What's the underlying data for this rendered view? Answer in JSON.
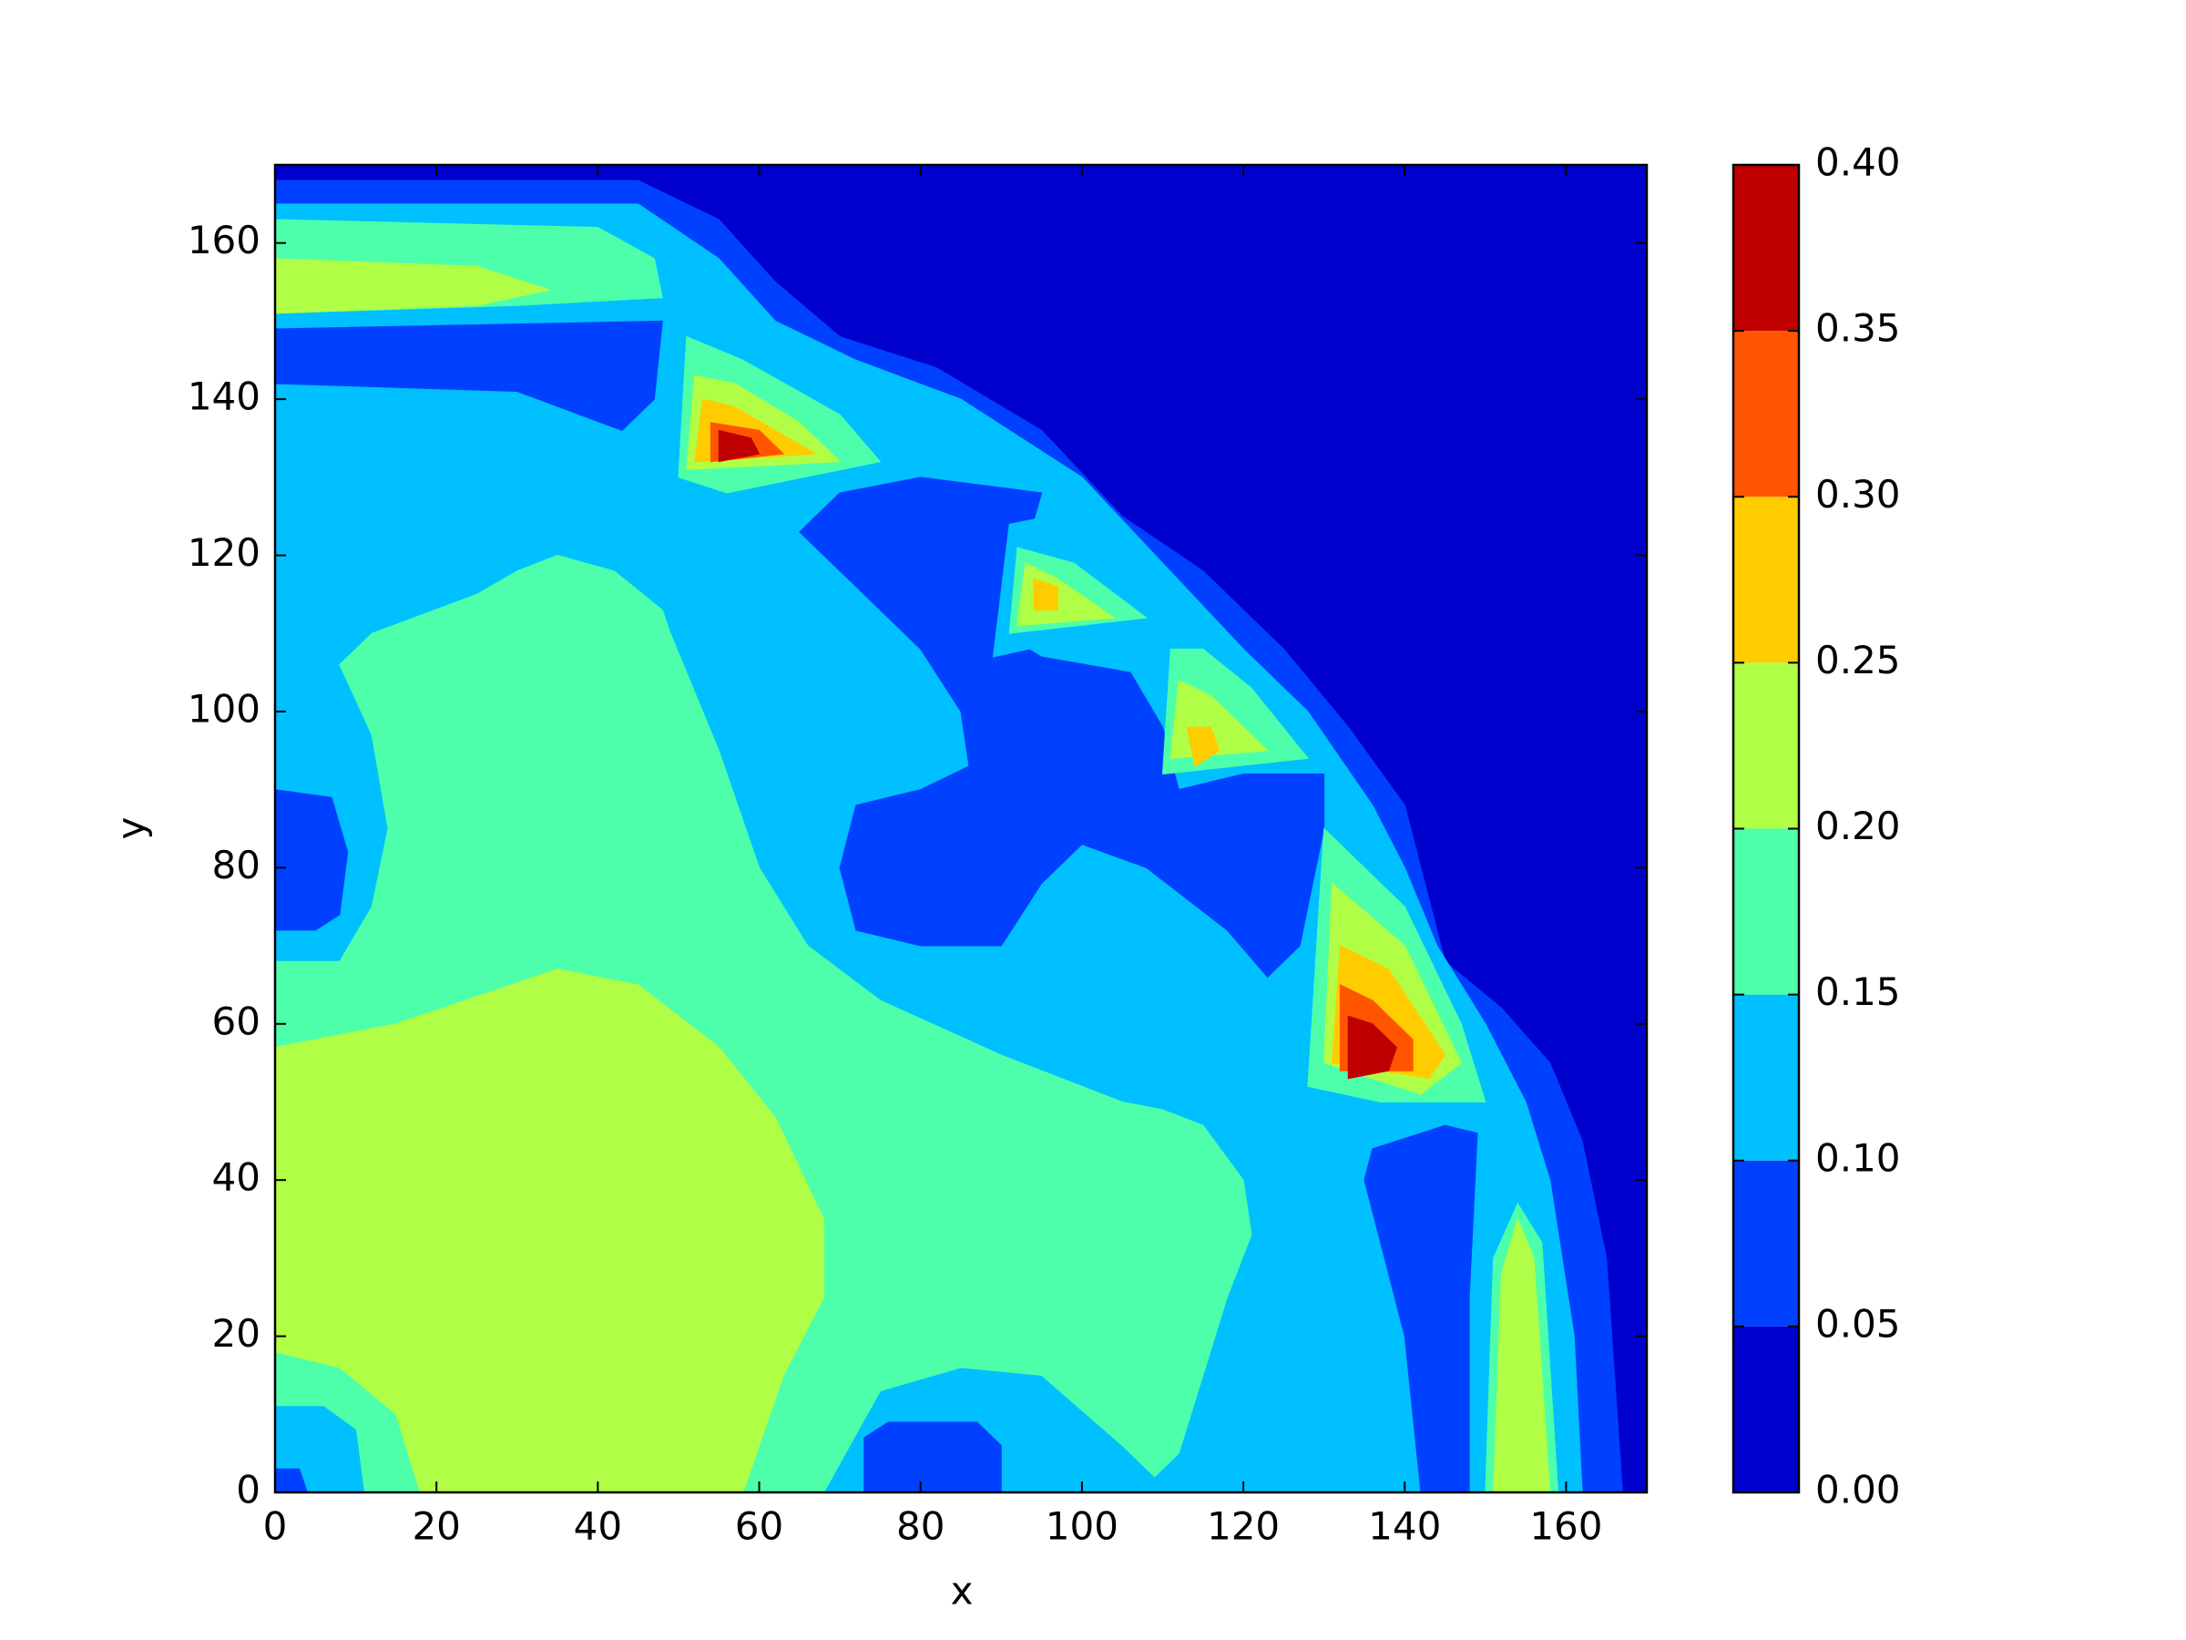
{
  "chart_data": {
    "type": "contourf",
    "x_label": "x",
    "y_label": "y",
    "xlim": [
      0,
      170
    ],
    "ylim": [
      0,
      170
    ],
    "xticks": [
      0,
      20,
      40,
      60,
      80,
      100,
      120,
      140,
      160
    ],
    "yticks": [
      0,
      20,
      40,
      60,
      80,
      100,
      120,
      140,
      160
    ],
    "levels": [
      {
        "value": 0,
        "label": "0.00"
      },
      {
        "value": 0.05,
        "label": "0.05"
      },
      {
        "value": 0.1,
        "label": "0.10"
      },
      {
        "value": 0.15,
        "label": "0.15"
      },
      {
        "value": 0.2,
        "label": "0.20"
      },
      {
        "value": 0.25,
        "label": "0.25"
      },
      {
        "value": 0.3,
        "label": "0.30"
      },
      {
        "value": 0.35,
        "label": "0.35"
      },
      {
        "value": 0.4,
        "label": "0.40"
      }
    ],
    "colors": [
      "#0000cd",
      "#0040ff",
      "#00c0ff",
      "#4dffaa",
      "#b0ff46",
      "#ffcc00",
      "#ff5500",
      "#c00000"
    ],
    "regions": [
      {
        "z": 0,
        "points": [
          [
            0,
            0
          ],
          [
            0,
            170
          ],
          [
            170,
            170
          ],
          [
            170,
            0
          ]
        ]
      },
      {
        "z": 0.05,
        "points": [
          [
            0,
            0
          ],
          [
            0,
            168
          ],
          [
            45,
            168
          ],
          [
            55,
            163
          ],
          [
            62,
            155
          ],
          [
            70,
            148
          ],
          [
            82,
            144
          ],
          [
            95,
            136
          ],
          [
            105,
            125
          ],
          [
            115,
            118
          ],
          [
            125,
            108
          ],
          [
            133,
            98
          ],
          [
            140,
            88
          ],
          [
            145,
            68
          ],
          [
            152,
            62
          ],
          [
            158,
            55
          ],
          [
            162,
            45
          ],
          [
            165,
            30
          ],
          [
            167,
            0
          ]
        ]
      },
      {
        "z": 0.1,
        "points": [
          [
            0,
            0
          ],
          [
            0,
            165
          ],
          [
            45,
            165
          ],
          [
            55,
            158
          ],
          [
            62,
            150
          ],
          [
            72,
            145
          ],
          [
            85,
            140
          ],
          [
            100,
            130
          ],
          [
            110,
            119
          ],
          [
            120,
            108
          ],
          [
            128,
            100
          ],
          [
            136,
            88
          ],
          [
            140,
            80
          ],
          [
            144,
            70
          ],
          [
            150,
            60
          ],
          [
            155,
            50
          ],
          [
            158,
            40
          ],
          [
            161,
            20
          ],
          [
            162,
            0
          ]
        ]
      },
      {
        "z": 0.05,
        "points": [
          [
            0,
            142
          ],
          [
            30,
            141
          ],
          [
            43,
            136
          ],
          [
            47,
            140
          ],
          [
            48,
            150
          ],
          [
            0,
            149
          ]
        ]
      },
      {
        "z": 0.05,
        "points": [
          [
            0,
            72
          ],
          [
            0,
            90
          ],
          [
            7,
            89
          ],
          [
            9,
            82
          ],
          [
            8,
            74
          ],
          [
            5,
            72
          ]
        ]
      },
      {
        "z": 0.05,
        "points": [
          [
            65,
            123
          ],
          [
            70,
            118
          ],
          [
            80,
            108
          ],
          [
            85,
            100
          ],
          [
            86,
            93
          ],
          [
            80,
            90
          ],
          [
            72,
            88
          ],
          [
            70,
            80
          ],
          [
            72,
            72
          ],
          [
            80,
            70
          ],
          [
            90,
            70
          ],
          [
            95,
            78
          ],
          [
            100,
            83
          ],
          [
            108,
            80
          ],
          [
            118,
            72
          ],
          [
            123,
            66
          ],
          [
            127,
            70
          ],
          [
            130,
            85
          ],
          [
            130,
            92
          ],
          [
            120,
            92
          ],
          [
            112,
            90
          ],
          [
            110,
            98
          ],
          [
            106,
            105
          ],
          [
            95,
            107
          ],
          [
            90,
            110
          ],
          [
            95,
            128
          ],
          [
            80,
            130
          ],
          [
            70,
            128
          ]
        ]
      },
      {
        "z": 0.05,
        "points": [
          [
            142,
            0
          ],
          [
            140,
            20
          ],
          [
            135,
            40
          ],
          [
            136,
            44
          ],
          [
            145,
            47
          ],
          [
            149,
            46
          ],
          [
            148,
            25
          ],
          [
            148,
            0
          ]
        ]
      },
      {
        "z": 0.15,
        "points": [
          [
            0,
            151
          ],
          [
            30,
            152
          ],
          [
            48,
            153
          ],
          [
            47,
            158
          ],
          [
            40,
            162
          ],
          [
            0,
            163
          ]
        ]
      },
      {
        "z": 0.15,
        "points": [
          [
            0,
            0
          ],
          [
            0,
            68
          ],
          [
            8,
            68
          ],
          [
            12,
            75
          ],
          [
            14,
            85
          ],
          [
            12,
            97
          ],
          [
            8,
            106
          ],
          [
            12,
            110
          ],
          [
            25,
            115
          ],
          [
            30,
            118
          ],
          [
            35,
            120
          ],
          [
            42,
            118
          ],
          [
            48,
            113
          ],
          [
            49,
            110
          ],
          [
            55,
            95
          ],
          [
            60,
            80
          ],
          [
            66,
            70
          ],
          [
            75,
            63
          ],
          [
            90,
            56
          ],
          [
            105,
            50
          ],
          [
            110,
            49
          ],
          [
            115,
            47
          ],
          [
            120,
            40
          ],
          [
            121,
            33
          ],
          [
            118,
            25
          ],
          [
            112,
            5
          ],
          [
            109,
            2
          ],
          [
            105,
            6
          ],
          [
            95,
            15
          ],
          [
            85,
            16
          ],
          [
            75,
            13
          ],
          [
            68,
            0
          ]
        ]
      },
      {
        "z": 0.15,
        "points": [
          [
            150,
            0
          ],
          [
            151,
            30
          ],
          [
            154,
            37
          ],
          [
            157,
            32
          ],
          [
            159,
            0
          ]
        ]
      },
      {
        "z": 0.1,
        "points": [
          [
            0,
            0
          ],
          [
            0,
            11
          ],
          [
            6,
            11
          ],
          [
            10,
            8
          ],
          [
            11,
            0
          ]
        ]
      },
      {
        "z": 0.05,
        "points": [
          [
            0,
            0
          ],
          [
            0,
            3
          ],
          [
            3,
            3
          ],
          [
            4,
            0
          ]
        ]
      },
      {
        "z": 0.05,
        "points": [
          [
            73,
            0
          ],
          [
            73,
            7
          ],
          [
            76,
            9
          ],
          [
            87,
            9
          ],
          [
            90,
            6
          ],
          [
            90,
            0
          ]
        ]
      },
      {
        "z": 0.2,
        "points": [
          [
            0,
            18
          ],
          [
            0,
            57
          ],
          [
            15,
            60
          ],
          [
            35,
            67
          ],
          [
            45,
            65
          ],
          [
            55,
            57
          ],
          [
            62,
            48
          ],
          [
            68,
            35
          ],
          [
            68,
            25
          ],
          [
            63,
            15
          ],
          [
            58,
            0
          ],
          [
            18,
            0
          ],
          [
            15,
            10
          ],
          [
            8,
            16
          ]
        ]
      },
      {
        "z": 0.2,
        "points": [
          [
            0,
            151
          ],
          [
            25,
            152
          ],
          [
            34,
            154
          ],
          [
            25,
            157
          ],
          [
            0,
            158
          ]
        ]
      },
      {
        "z": 0.2,
        "points": [
          [
            151,
            0
          ],
          [
            152,
            28
          ],
          [
            154,
            35
          ],
          [
            156,
            30
          ],
          [
            158,
            0
          ]
        ]
      },
      {
        "z": 0.1,
        "points": [
          [
            50,
            150
          ],
          [
            48,
            130
          ],
          [
            55,
            127
          ],
          [
            80,
            132
          ],
          [
            77,
            138
          ],
          [
            62,
            146
          ]
        ]
      },
      {
        "z": 0.15,
        "points": [
          [
            51,
            148
          ],
          [
            50,
            130
          ],
          [
            56,
            128
          ],
          [
            75,
            132
          ],
          [
            70,
            138
          ],
          [
            58,
            145
          ]
        ]
      },
      {
        "z": 0.2,
        "points": [
          [
            52,
            143
          ],
          [
            51,
            131
          ],
          [
            70,
            132
          ],
          [
            65,
            137
          ],
          [
            57,
            142
          ]
        ]
      },
      {
        "z": 0.25,
        "points": [
          [
            53,
            140
          ],
          [
            52,
            132
          ],
          [
            67,
            133
          ],
          [
            62,
            136
          ],
          [
            57,
            139
          ]
        ]
      },
      {
        "z": 0.3,
        "points": [
          [
            54,
            137
          ],
          [
            54,
            132
          ],
          [
            63,
            133
          ],
          [
            60,
            136
          ]
        ]
      },
      {
        "z": 0.35,
        "points": [
          [
            55,
            136
          ],
          [
            55,
            132
          ],
          [
            60,
            133
          ],
          [
            59,
            135
          ]
        ]
      },
      {
        "z": 0.1,
        "points": [
          [
            91,
            124
          ],
          [
            89,
            107
          ],
          [
            111,
            112
          ],
          [
            104,
            119
          ],
          [
            96,
            125
          ]
        ]
      },
      {
        "z": 0.15,
        "points": [
          [
            92,
            121
          ],
          [
            91,
            110
          ],
          [
            108,
            112
          ],
          [
            99,
            119
          ]
        ]
      },
      {
        "z": 0.2,
        "points": [
          [
            93,
            119
          ],
          [
            92,
            111
          ],
          [
            104,
            112
          ],
          [
            97,
            117
          ]
        ]
      },
      {
        "z": 0.25,
        "points": [
          [
            94,
            117
          ],
          [
            94,
            113
          ],
          [
            97,
            113
          ],
          [
            97,
            116
          ]
        ]
      },
      {
        "z": 0.15,
        "points": [
          [
            111,
            108
          ],
          [
            110,
            92
          ],
          [
            128,
            94
          ],
          [
            121,
            103
          ],
          [
            115,
            108
          ]
        ]
      },
      {
        "z": 0.2,
        "points": [
          [
            112,
            104
          ],
          [
            111,
            94
          ],
          [
            123,
            95
          ],
          [
            116,
            102
          ]
        ]
      },
      {
        "z": 0.25,
        "points": [
          [
            113,
            98
          ],
          [
            114,
            93
          ],
          [
            117,
            95
          ],
          [
            116,
            98
          ]
        ]
      },
      {
        "z": 0.15,
        "points": [
          [
            130,
            85
          ],
          [
            128,
            52
          ],
          [
            137,
            50
          ],
          [
            150,
            50
          ],
          [
            147,
            60
          ],
          [
            140,
            75
          ]
        ]
      },
      {
        "z": 0.2,
        "points": [
          [
            131,
            78
          ],
          [
            130,
            55
          ],
          [
            142,
            51
          ],
          [
            147,
            55
          ],
          [
            140,
            70
          ]
        ]
      },
      {
        "z": 0.25,
        "points": [
          [
            132,
            70
          ],
          [
            131,
            55
          ],
          [
            143,
            53
          ],
          [
            145,
            56
          ],
          [
            138,
            67
          ]
        ]
      },
      {
        "z": 0.3,
        "points": [
          [
            132,
            65
          ],
          [
            132,
            54
          ],
          [
            141,
            54
          ],
          [
            141,
            58
          ],
          [
            136,
            63
          ]
        ]
      },
      {
        "z": 0.35,
        "points": [
          [
            133,
            61
          ],
          [
            133,
            53
          ],
          [
            138,
            54
          ],
          [
            139,
            57
          ],
          [
            136,
            60
          ]
        ]
      }
    ]
  }
}
